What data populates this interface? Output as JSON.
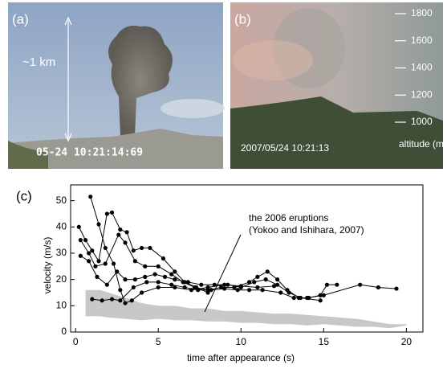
{
  "photo_a": {
    "label": "(a)",
    "scale_text": "~1 km",
    "timestamp": "05-24 10:21:14:69"
  },
  "photo_b": {
    "label": "(b)",
    "timestamp": "2007/05/24 10:21:13",
    "altitude_label": "altitude (m)",
    "altitude_ticks": [
      1800,
      1600,
      1400,
      1200,
      1000
    ]
  },
  "chart_data": {
    "type": "line",
    "panel_label": "(c)",
    "x_label": "time after appearance (s)",
    "y_label": "velocity (m/s)",
    "annotation": "the 2006 eruptions\n(Yokoo and Ishihara, 2007)",
    "xlim": [
      -0.3,
      21
    ],
    "ylim": [
      0,
      56
    ],
    "xticks": [
      0,
      5,
      10,
      15,
      20
    ],
    "yticks": [
      0,
      10,
      20,
      30,
      40,
      50
    ],
    "series": [
      {
        "color": "#000000",
        "x": [
          0.9,
          1.4,
          1.8,
          2.3,
          2.7,
          3.0,
          3.4,
          4.0,
          5.0,
          6.0,
          7.0,
          8.0,
          9.0,
          10.0,
          11.0,
          12.0
        ],
        "values": [
          51.5,
          41,
          32,
          26,
          16,
          11,
          12,
          15,
          17,
          17,
          16,
          17,
          18,
          17.5,
          17,
          17.5
        ]
      },
      {
        "color": "#000000",
        "x": [
          0.2,
          0.6,
          1.0,
          1.4,
          1.9,
          2.2,
          2.7,
          3.1,
          3.5,
          4.0,
          4.5,
          5.3,
          6.0,
          6.6,
          7.3,
          8.0
        ],
        "values": [
          40,
          35,
          31,
          27,
          45,
          45.5,
          39,
          38,
          31,
          32,
          32,
          28,
          23,
          19,
          17,
          15
        ]
      },
      {
        "color": "#000000",
        "x": [
          0.3,
          0.8,
          1.2,
          1.8,
          2.6,
          3.0,
          3.6,
          4.2,
          5.0,
          5.8,
          6.5,
          7.2,
          8.0,
          8.8,
          9.6,
          10.5,
          11.0,
          11.6,
          12.2,
          12.8,
          13.5,
          14.1,
          14.8,
          15.2,
          15.8
        ],
        "values": [
          35,
          30,
          25,
          26,
          37,
          34,
          27,
          25,
          25,
          22,
          19,
          17,
          16,
          17,
          17,
          19,
          21,
          23,
          20,
          16,
          13,
          13,
          14,
          18,
          18
        ]
      },
      {
        "color": "#000000",
        "x": [
          0.3,
          0.8,
          1.3,
          1.9,
          2.5,
          3.0,
          3.6,
          4.2,
          4.8,
          5.4,
          6.0,
          6.8,
          7.6,
          8.4,
          9.2,
          10.0,
          10.8,
          11.5,
          12.2,
          12.9,
          13.6,
          14.8
        ],
        "values": [
          29,
          27,
          21,
          18,
          23,
          20,
          20,
          21,
          22,
          21,
          20,
          19,
          18,
          18,
          18,
          17,
          19,
          20,
          18,
          15,
          13,
          12
        ]
      },
      {
        "color": "#000000",
        "x": [
          1.0,
          1.6,
          2.2,
          2.7,
          3.5,
          4.3,
          5.0,
          5.8,
          6.6,
          7.4,
          8.2,
          9.0,
          9.8,
          10.5,
          11.3,
          12.4,
          13.2,
          14.0,
          15.0,
          17.2,
          18.3,
          19.4
        ],
        "values": [
          12.5,
          12,
          12.5,
          12,
          17,
          19,
          19,
          18,
          17,
          16,
          16,
          16.5,
          16,
          16,
          16,
          15,
          13,
          13,
          14,
          18,
          17,
          16.5
        ]
      }
    ],
    "band": {
      "color": "#c8c8c8",
      "x": [
        0.6,
        1.5,
        2,
        3,
        4,
        5,
        6,
        7,
        8,
        9,
        10,
        11,
        12,
        13,
        14,
        15,
        16,
        17,
        18,
        19,
        20
      ],
      "upper": [
        16,
        16,
        15,
        13,
        11,
        10,
        10,
        9,
        9,
        8,
        8,
        7.5,
        7,
        7,
        6.5,
        6,
        5.5,
        5,
        4,
        3,
        3
      ],
      "lower": [
        6,
        6,
        5.5,
        5,
        4.5,
        5,
        4.5,
        4.5,
        4,
        4,
        3.5,
        3.5,
        3,
        3,
        2.5,
        3,
        2.5,
        2,
        2,
        1.5,
        2.5
      ]
    }
  }
}
